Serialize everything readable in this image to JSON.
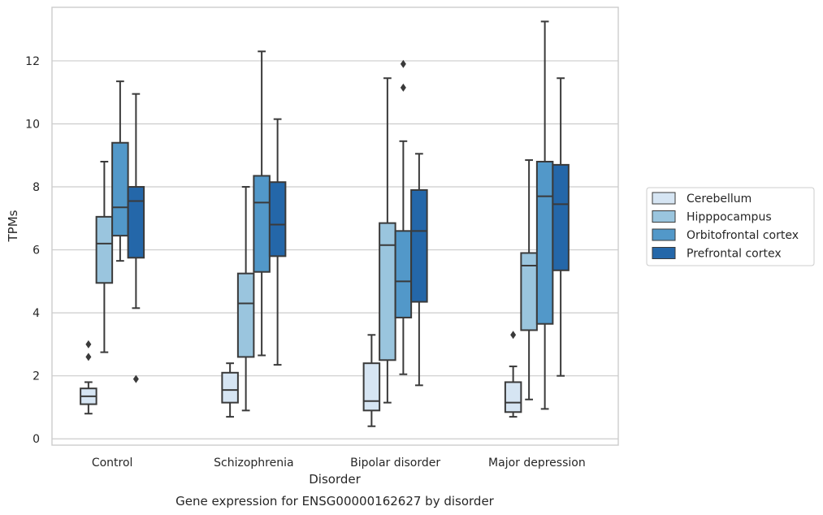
{
  "chart_data": {
    "type": "box",
    "xlabel": "Disorder",
    "ylabel": "TPMs",
    "caption": "Gene expression for ENSG00000162627 by disorder",
    "ylim": [
      -0.2,
      13.7
    ],
    "yticks": [
      0,
      2,
      4,
      6,
      8,
      10,
      12
    ],
    "grid": "horizontal",
    "legend_position": "right",
    "categories": [
      "Control",
      "Schizophrenia",
      "Bipolar disorder",
      "Major depression"
    ],
    "series": [
      {
        "name": "Cerebellum",
        "color": "#d6e5f3",
        "boxes": [
          {
            "whisker_low": 0.8,
            "q1": 1.1,
            "median": 1.35,
            "q3": 1.6,
            "whisker_high": 1.8,
            "outliers": [
              2.6,
              3.0
            ]
          },
          {
            "whisker_low": 0.7,
            "q1": 1.15,
            "median": 1.55,
            "q3": 2.1,
            "whisker_high": 2.4,
            "outliers": []
          },
          {
            "whisker_low": 0.4,
            "q1": 0.9,
            "median": 1.2,
            "q3": 2.4,
            "whisker_high": 3.3,
            "outliers": []
          },
          {
            "whisker_low": 0.7,
            "q1": 0.85,
            "median": 1.15,
            "q3": 1.8,
            "whisker_high": 2.3,
            "outliers": [
              3.3
            ]
          }
        ]
      },
      {
        "name": "Hipppocampus",
        "color": "#9ac5de",
        "boxes": [
          {
            "whisker_low": 2.75,
            "q1": 4.95,
            "median": 6.2,
            "q3": 7.05,
            "whisker_high": 8.8,
            "outliers": []
          },
          {
            "whisker_low": 0.9,
            "q1": 2.6,
            "median": 4.3,
            "q3": 5.25,
            "whisker_high": 8.0,
            "outliers": []
          },
          {
            "whisker_low": 1.15,
            "q1": 2.5,
            "median": 6.15,
            "q3": 6.85,
            "whisker_high": 11.45,
            "outliers": []
          },
          {
            "whisker_low": 1.25,
            "q1": 3.45,
            "median": 5.5,
            "q3": 5.9,
            "whisker_high": 8.85,
            "outliers": []
          }
        ]
      },
      {
        "name": "Orbitofrontal cortex",
        "color": "#5298c9",
        "boxes": [
          {
            "whisker_low": 5.65,
            "q1": 6.45,
            "median": 7.35,
            "q3": 9.4,
            "whisker_high": 11.35,
            "outliers": []
          },
          {
            "whisker_low": 2.65,
            "q1": 5.3,
            "median": 7.5,
            "q3": 8.35,
            "whisker_high": 12.3,
            "outliers": []
          },
          {
            "whisker_low": 2.05,
            "q1": 3.85,
            "median": 5.0,
            "q3": 6.6,
            "whisker_high": 9.45,
            "outliers": [
              11.15,
              11.9
            ]
          },
          {
            "whisker_low": 0.95,
            "q1": 3.65,
            "median": 7.7,
            "q3": 8.8,
            "whisker_high": 13.25,
            "outliers": []
          }
        ]
      },
      {
        "name": "Prefrontal cortex",
        "color": "#2467a9",
        "boxes": [
          {
            "whisker_low": 4.15,
            "q1": 5.75,
            "median": 7.55,
            "q3": 8.0,
            "whisker_high": 10.95,
            "outliers": [
              1.9
            ]
          },
          {
            "whisker_low": 2.35,
            "q1": 5.8,
            "median": 6.8,
            "q3": 8.15,
            "whisker_high": 10.15,
            "outliers": []
          },
          {
            "whisker_low": 1.7,
            "q1": 4.35,
            "median": 6.6,
            "q3": 7.9,
            "whisker_high": 9.05,
            "outliers": []
          },
          {
            "whisker_low": 2.0,
            "q1": 5.35,
            "median": 7.45,
            "q3": 8.7,
            "whisker_high": 11.45,
            "outliers": []
          }
        ]
      }
    ]
  }
}
